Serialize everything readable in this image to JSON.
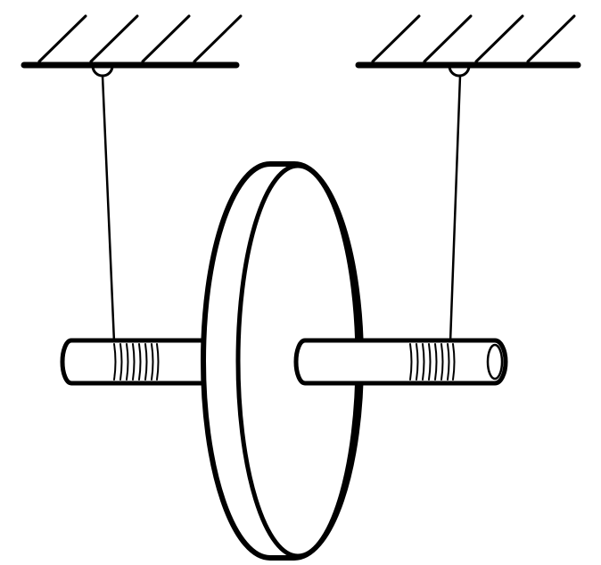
{
  "colors": {
    "stroke": "#000000",
    "background": "#ffffff"
  }
}
